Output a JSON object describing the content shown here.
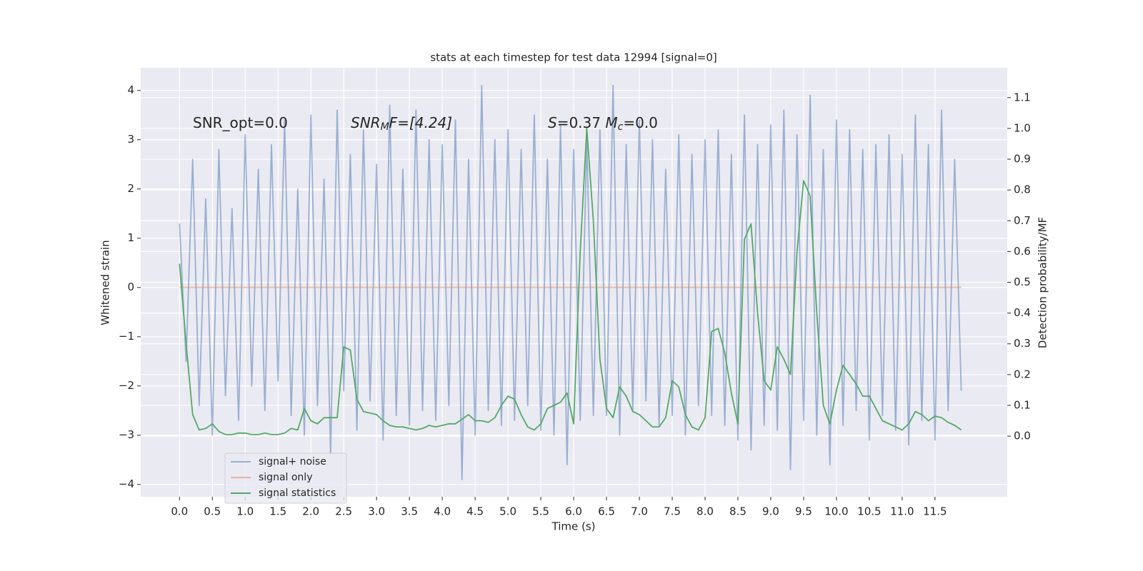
{
  "chart_data": {
    "type": "line",
    "title": "stats at each timestep for test data 12994 [signal=0]",
    "x_label": "Time (s)",
    "y_label": "Whitened strain",
    "y2_label": "Detection probability/MF",
    "annotations": [
      [
        "SNR_opt=0.0"
      ],
      [
        "SNR",
        "M",
        "F=[4.24]"
      ],
      [
        "S",
        "=0.37   ",
        "M",
        "c",
        "=0.0"
      ]
    ],
    "x": [
      0.0,
      0.1,
      0.2,
      0.3,
      0.4,
      0.5,
      0.6,
      0.7,
      0.8,
      0.9,
      1.0,
      1.1,
      1.2,
      1.3,
      1.4,
      1.5,
      1.6,
      1.7,
      1.8,
      1.9,
      2.0,
      2.1,
      2.2,
      2.3,
      2.4,
      2.5,
      2.6,
      2.7,
      2.8,
      2.9,
      3.0,
      3.1,
      3.2,
      3.3,
      3.4,
      3.5,
      3.6,
      3.7,
      3.8,
      3.9,
      4.0,
      4.1,
      4.2,
      4.3,
      4.4,
      4.5,
      4.6,
      4.7,
      4.8,
      4.9,
      5.0,
      5.1,
      5.2,
      5.3,
      5.4,
      5.5,
      5.6,
      5.7,
      5.8,
      5.9,
      6.0,
      6.1,
      6.2,
      6.3,
      6.4,
      6.5,
      6.6,
      6.7,
      6.8,
      6.9,
      7.0,
      7.1,
      7.2,
      7.3,
      7.4,
      7.5,
      7.6,
      7.7,
      7.8,
      7.9,
      8.0,
      8.1,
      8.2,
      8.3,
      8.4,
      8.5,
      8.6,
      8.7,
      8.8,
      8.9,
      9.0,
      9.1,
      9.2,
      9.3,
      9.4,
      9.5,
      9.6,
      9.7,
      9.8,
      9.9,
      10.0,
      10.1,
      10.2,
      10.3,
      10.4,
      10.5,
      10.6,
      10.7,
      10.8,
      10.9,
      11.0,
      11.1,
      11.2,
      11.3,
      11.4,
      11.5,
      11.6,
      11.7,
      11.8,
      11.9
    ],
    "series": [
      {
        "name": "signal+ noise",
        "color": "#4c72b0",
        "opacity": 0.5,
        "values": [
          1.3,
          -1.5,
          2.6,
          -2.4,
          1.8,
          -3.0,
          2.8,
          -2.2,
          1.6,
          -2.7,
          3.1,
          -2.0,
          2.4,
          -2.5,
          2.9,
          -1.9,
          3.4,
          -2.6,
          2.0,
          -3.0,
          3.5,
          -2.4,
          2.2,
          -3.4,
          3.6,
          -2.1,
          2.7,
          -2.9,
          3.2,
          -2.3,
          2.5,
          -3.1,
          3.7,
          -2.6,
          2.4,
          -2.8,
          3.6,
          -2.5,
          3.0,
          -2.7,
          2.9,
          -2.4,
          3.4,
          -3.9,
          2.6,
          -3.0,
          4.1,
          -2.5,
          3.0,
          -2.8,
          3.2,
          -2.7,
          2.8,
          -2.4,
          3.5,
          -2.9,
          2.6,
          -3.0,
          3.3,
          -3.6,
          2.8,
          -2.7,
          3.0,
          -2.6,
          3.2,
          -2.6,
          4.1,
          -3.0,
          2.9,
          -2.5,
          3.4,
          -2.3,
          3.0,
          -2.8,
          2.4,
          -2.6,
          3.1,
          -3.0,
          2.7,
          -2.4,
          3.0,
          -2.6,
          3.2,
          -2.8,
          2.7,
          -3.1,
          3.5,
          -3.3,
          2.9,
          -2.8,
          3.3,
          -2.9,
          3.6,
          -3.7,
          3.1,
          -2.7,
          3.9,
          -3.0,
          2.8,
          -3.6,
          3.4,
          -2.8,
          3.2,
          -2.5,
          2.8,
          -3.1,
          2.9,
          -2.6,
          3.1,
          -2.9,
          2.7,
          -3.2,
          3.5,
          -2.7,
          2.9,
          -3.1,
          3.6,
          -2.5,
          2.6,
          -2.1
        ]
      },
      {
        "name": "signal only",
        "color": "#dd8452",
        "opacity": 0.5,
        "values": [
          0,
          0,
          0,
          0,
          0,
          0,
          0,
          0,
          0,
          0,
          0,
          0,
          0,
          0,
          0,
          0,
          0,
          0,
          0,
          0,
          0,
          0,
          0,
          0,
          0,
          0,
          0,
          0,
          0,
          0,
          0,
          0,
          0,
          0,
          0,
          0,
          0,
          0,
          0,
          0,
          0,
          0,
          0,
          0,
          0,
          0,
          0,
          0,
          0,
          0,
          0,
          0,
          0,
          0,
          0,
          0,
          0,
          0,
          0,
          0,
          0,
          0,
          0,
          0,
          0,
          0,
          0,
          0,
          0,
          0,
          0,
          0,
          0,
          0,
          0,
          0,
          0,
          0,
          0,
          0,
          0,
          0,
          0,
          0,
          0,
          0,
          0,
          0,
          0,
          0,
          0,
          0,
          0,
          0,
          0,
          0,
          0,
          0,
          0,
          0,
          0,
          0,
          0,
          0,
          0,
          0,
          0,
          0,
          0,
          0,
          0,
          0,
          0,
          0,
          0,
          0,
          0,
          0,
          0,
          0
        ]
      },
      {
        "name": "signal statistics",
        "color": "#55a868",
        "opacity": 1,
        "axis": "y2",
        "values": [
          0.56,
          0.3,
          0.07,
          0.02,
          0.025,
          0.04,
          0.015,
          0.005,
          0.005,
          0.01,
          0.01,
          0.005,
          0.005,
          0.01,
          0.005,
          0.005,
          0.01,
          0.025,
          0.02,
          0.09,
          0.05,
          0.04,
          0.06,
          0.06,
          0.06,
          0.29,
          0.28,
          0.12,
          0.08,
          0.075,
          0.07,
          0.05,
          0.035,
          0.03,
          0.03,
          0.025,
          0.02,
          0.025,
          0.035,
          0.03,
          0.035,
          0.04,
          0.04,
          0.055,
          0.07,
          0.05,
          0.05,
          0.045,
          0.06,
          0.1,
          0.13,
          0.12,
          0.07,
          0.03,
          0.02,
          0.04,
          0.09,
          0.1,
          0.11,
          0.14,
          0.04,
          0.6,
          1.0,
          0.7,
          0.25,
          0.09,
          0.06,
          0.16,
          0.13,
          0.08,
          0.07,
          0.05,
          0.03,
          0.03,
          0.06,
          0.18,
          0.16,
          0.07,
          0.03,
          0.02,
          0.06,
          0.34,
          0.35,
          0.27,
          0.14,
          0.04,
          0.64,
          0.69,
          0.4,
          0.18,
          0.15,
          0.29,
          0.25,
          0.2,
          0.6,
          0.83,
          0.78,
          0.4,
          0.1,
          0.04,
          0.15,
          0.23,
          0.2,
          0.17,
          0.13,
          0.13,
          0.09,
          0.05,
          0.04,
          0.03,
          0.02,
          0.04,
          0.08,
          0.07,
          0.05,
          0.065,
          0.06,
          0.045,
          0.035,
          0.02
        ]
      }
    ],
    "xlim": [
      -0.59,
      12.6
    ],
    "xticks": [
      {
        "value": 0,
        "label": "0.0"
      },
      {
        "value": 0.5,
        "label": "0.5"
      },
      {
        "value": 1,
        "label": "1.0"
      },
      {
        "value": 1.5,
        "label": "1.5"
      },
      {
        "value": 2,
        "label": "2.0"
      },
      {
        "value": 2.5,
        "label": "2.5"
      },
      {
        "value": 3,
        "label": "3.0"
      },
      {
        "value": 3.5,
        "label": "3.5"
      },
      {
        "value": 4,
        "label": "4.0"
      },
      {
        "value": 4.5,
        "label": "4.5"
      },
      {
        "value": 5,
        "label": "5.0"
      },
      {
        "value": 5.5,
        "label": "5.5"
      },
      {
        "value": 6,
        "label": "6.0"
      },
      {
        "value": 6.5,
        "label": "6.5"
      },
      {
        "value": 7,
        "label": "7.0"
      },
      {
        "value": 7.5,
        "label": "7.5"
      },
      {
        "value": 8,
        "label": "8.0"
      },
      {
        "value": 8.5,
        "label": "8.5"
      },
      {
        "value": 9,
        "label": "9.0"
      },
      {
        "value": 9.5,
        "label": "9.5"
      },
      {
        "value": 10,
        "label": "10.0"
      },
      {
        "value": 10.5,
        "label": "10.5"
      },
      {
        "value": 11,
        "label": "11.0"
      },
      {
        "value": 11.5,
        "label": "11.5"
      }
    ],
    "ylim": [
      -4.25,
      4.46
    ],
    "yticks": [
      {
        "value": -4,
        "label": "−4"
      },
      {
        "value": -3,
        "label": "−3"
      },
      {
        "value": -2,
        "label": "−2"
      },
      {
        "value": -1,
        "label": "−1"
      },
      0,
      1,
      2,
      3,
      4
    ],
    "y2lim": [
      -0.197,
      1.197
    ],
    "y2ticks": [
      {
        "value": 0,
        "label": "0.0"
      },
      {
        "value": 0.1,
        "label": "0.1"
      },
      {
        "value": 0.2,
        "label": "0.2"
      },
      {
        "value": 0.3,
        "label": "0.3"
      },
      {
        "value": 0.4,
        "label": "0.4"
      },
      {
        "value": 0.5,
        "label": "0.5"
      },
      {
        "value": 0.6,
        "label": "0.6"
      },
      {
        "value": 0.7,
        "label": "0.7"
      },
      {
        "value": 0.8,
        "label": "0.8"
      },
      {
        "value": 0.9,
        "label": "0.9"
      },
      {
        "value": 1,
        "label": "1.0"
      },
      {
        "value": 1.1,
        "label": "1.1"
      }
    ],
    "grid": true,
    "legend": "lower left",
    "background": "#eaeaf2"
  }
}
